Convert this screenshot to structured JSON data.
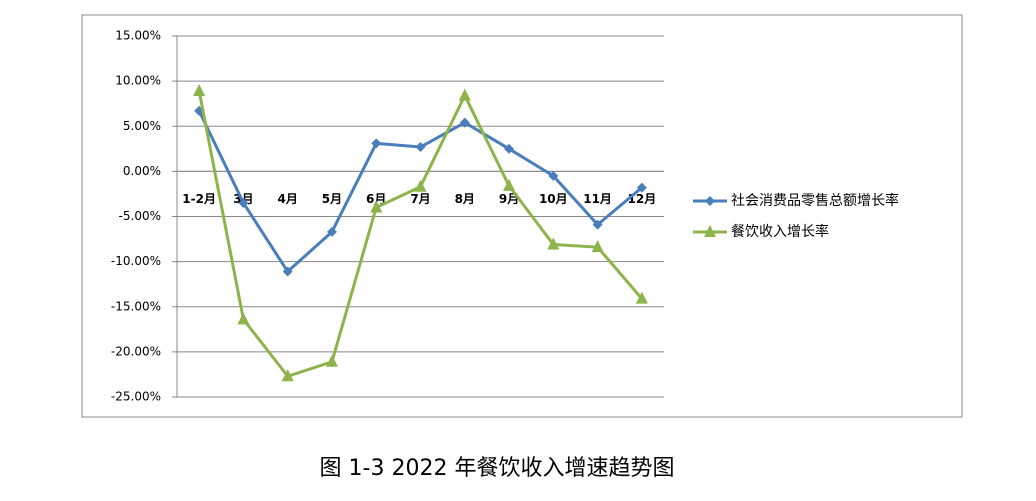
{
  "chart_data": {
    "type": "line",
    "caption": "图 1-3 2022 年餐饮收入增速趋势图",
    "categories": [
      "1-2月",
      "3月",
      "4月",
      "5月",
      "6月",
      "7月",
      "8月",
      "9月",
      "10月",
      "11月",
      "12月"
    ],
    "series": [
      {
        "name": "社会消费品零售总额增长率",
        "color": "#4a7ebb",
        "marker": "diamond",
        "values": [
          6.7,
          -3.5,
          -11.1,
          -6.7,
          3.1,
          2.7,
          5.4,
          2.5,
          -0.5,
          -5.9,
          -1.8
        ]
      },
      {
        "name": "餐饮收入增长率",
        "color": "#8db44a",
        "marker": "triangle",
        "values": [
          8.9,
          -16.4,
          -22.7,
          -21.1,
          -4.0,
          -1.7,
          8.4,
          -1.6,
          -8.1,
          -8.4,
          -14.1
        ]
      }
    ],
    "ylim": [
      -25,
      15
    ],
    "yticks": [
      {
        "value": -25,
        "label": "-25.00%"
      },
      {
        "value": -20,
        "label": "-20.00%"
      },
      {
        "value": -15,
        "label": "-15.00%"
      },
      {
        "value": -10,
        "label": "-10.00%"
      },
      {
        "value": -5,
        "label": "-5.00%"
      },
      {
        "value": 0,
        "label": "0.00%"
      },
      {
        "value": 5,
        "label": "5.00%"
      },
      {
        "value": 10,
        "label": "10.00%"
      },
      {
        "value": 15,
        "label": "15.00%"
      }
    ],
    "grid": true,
    "legend": "right"
  }
}
